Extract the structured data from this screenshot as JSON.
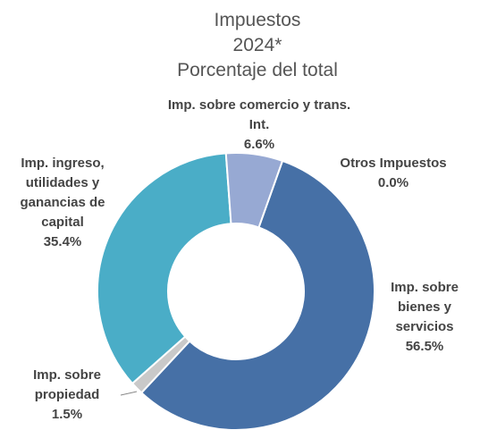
{
  "chart_data": {
    "type": "donut",
    "title": "Impuestos",
    "subtitle": "2024*",
    "caption": "Porcentaje del total",
    "categories": [
      "Otros Impuestos",
      "Imp. sobre bienes y servicios",
      "Imp. sobre propiedad",
      "Imp. ingreso, utilidades y ganancias de capital",
      "Imp. sobre comercio y trans. Int."
    ],
    "values": [
      0.0,
      56.5,
      1.5,
      35.4,
      6.6
    ],
    "value_labels": [
      "0.0%",
      "56.5%",
      "1.5%",
      "35.4%",
      "6.6%"
    ],
    "colors": [
      "#5a5a5a",
      "#4670a6",
      "#c9c9c9",
      "#4aadc7",
      "#97a9d3"
    ]
  }
}
